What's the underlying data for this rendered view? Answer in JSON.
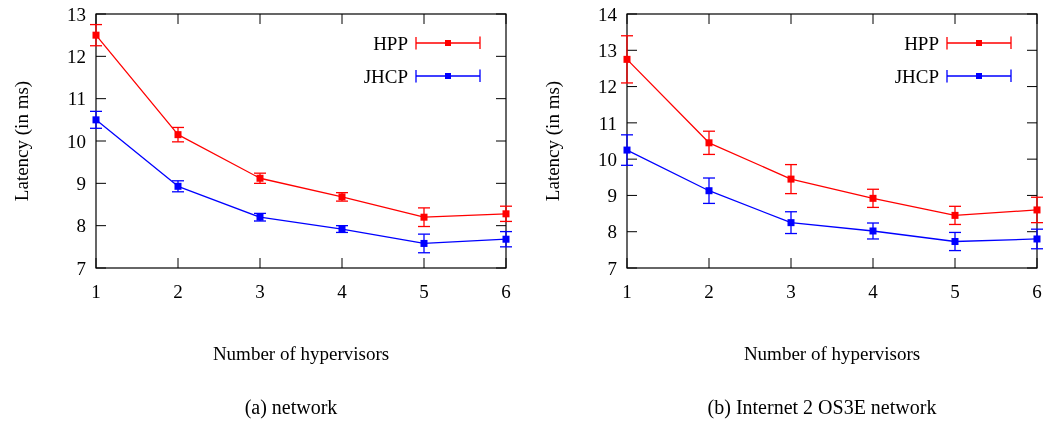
{
  "chart_data": [
    {
      "type": "line",
      "xlabel": "Number of hypervisors",
      "ylabel": "Latency (in ms)",
      "annotations": [
        "(a) network"
      ],
      "x": [
        1,
        2,
        3,
        4,
        5,
        6
      ],
      "xlim": [
        1,
        6
      ],
      "xticks": [
        1,
        2,
        3,
        4,
        5,
        6
      ],
      "ylim": [
        7,
        13
      ],
      "yticks": [
        7,
        8,
        9,
        10,
        11,
        12,
        13
      ],
      "legend": "top right",
      "marker": "square",
      "grid": false,
      "series": [
        {
          "name": "HPP",
          "color": "#ff0000",
          "values": [
            12.5,
            10.15,
            9.12,
            8.68,
            8.2,
            8.28
          ],
          "errors": [
            0.25,
            0.17,
            0.12,
            0.1,
            0.22,
            0.18
          ]
        },
        {
          "name": "JHCP",
          "color": "#0000ff",
          "values": [
            10.5,
            8.93,
            8.2,
            7.92,
            7.58,
            7.68
          ],
          "errors": [
            0.2,
            0.13,
            0.09,
            0.08,
            0.22,
            0.18
          ]
        }
      ]
    },
    {
      "type": "line",
      "xlabel": "Number of hypervisors",
      "ylabel": "Latency (in ms)",
      "annotations": [
        "(b) Internet 2 OS3E network"
      ],
      "x": [
        1,
        2,
        3,
        4,
        5,
        6
      ],
      "xlim": [
        1,
        6
      ],
      "xticks": [
        1,
        2,
        3,
        4,
        5,
        6
      ],
      "ylim": [
        7,
        14
      ],
      "yticks": [
        7,
        8,
        9,
        10,
        11,
        12,
        13,
        14
      ],
      "legend": "top right",
      "marker": "square",
      "grid": false,
      "series": [
        {
          "name": "HPP",
          "color": "#ff0000",
          "values": [
            12.75,
            10.45,
            9.45,
            8.92,
            8.45,
            8.6
          ],
          "errors": [
            0.65,
            0.32,
            0.4,
            0.25,
            0.25,
            0.35
          ]
        },
        {
          "name": "JHCP",
          "color": "#0000ff",
          "values": [
            10.25,
            9.13,
            8.25,
            8.02,
            7.73,
            7.8
          ],
          "errors": [
            0.42,
            0.35,
            0.3,
            0.22,
            0.25,
            0.27
          ]
        }
      ]
    }
  ]
}
